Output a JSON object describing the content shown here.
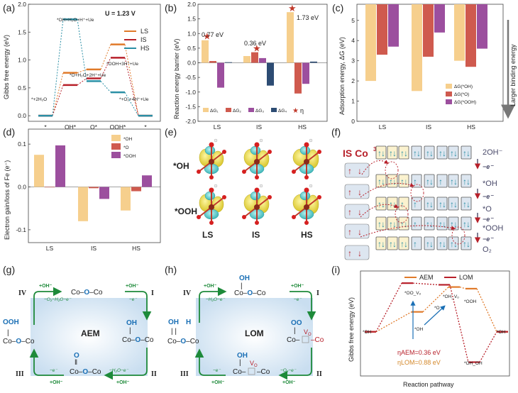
{
  "colors": {
    "ls": "#e07a2a",
    "is": "#b7202a",
    "hs": "#2a8fa5",
    "g1": "#f6cf8d",
    "g2": "#cf5a4e",
    "g3": "#9c4f9e",
    "g4": "#2d4c73",
    "star": "#c0392b",
    "aem": "#e07a2a",
    "lom": "#b7202a",
    "green": "#1e8a3a",
    "blue": "#1a6fb5"
  },
  "panels": {
    "a": {
      "label": "(a)",
      "ylabel": "Gibbs free energy (eV)",
      "annotation": "U = 1.23 V",
      "legend": [
        "LS",
        "IS",
        "HS"
      ],
      "xticks": [
        "*",
        "OH*",
        "O*",
        "OOH*",
        "*"
      ],
      "yticks": [
        "2.0",
        "1.5",
        "1.0",
        "0.5",
        "0.0"
      ],
      "state_labels": [
        "*+2H₂O",
        "*OH+H₂O+H⁺+Ue",
        "*O+H₂O+2H⁺+Ue",
        "*OOH+3H⁺+Ue",
        "*+O₂+4H⁺+Ue"
      ]
    },
    "b": {
      "label": "(b)",
      "ylabel": "Reaction energy barrier (eV)",
      "xticks": [
        "LS",
        "IS",
        "HS"
      ],
      "yticks": [
        "2.0",
        "1.5",
        "1.0",
        "0.5",
        "0.0",
        "-0.5",
        "-1.0",
        "-1.5",
        "-2.0"
      ],
      "values_text": [
        "0.77 eV",
        "0.36 eV",
        "1.73 eV"
      ],
      "legend": [
        "ΔG₁",
        "ΔG₂",
        "ΔG₃",
        "ΔG₄",
        "η"
      ]
    },
    "c": {
      "label": "(c)",
      "ylabel": "Adsorption energy, ΔG (eV)",
      "xticks": [
        "LS",
        "IS",
        "HS"
      ],
      "yticks": [
        "5",
        "4",
        "3",
        "2",
        "1",
        "0"
      ],
      "legend": [
        "ΔG(*OH)",
        "ΔG(*O)",
        "ΔG(*OOH)"
      ],
      "side_text": "Larger binding energy"
    },
    "d": {
      "label": "(d)",
      "ylabel": "Electron gain/loss of Fe (e⁻)",
      "xticks": [
        "LS",
        "IS",
        "HS"
      ],
      "yticks": [
        "0.1",
        "0.0",
        "-0.1"
      ],
      "legend": [
        "*OH",
        "*O",
        "*OOH"
      ]
    },
    "e": {
      "label": "(e)",
      "rows": [
        "*OH",
        "*OOH"
      ],
      "cols": [
        "LS",
        "IS",
        "HS"
      ]
    },
    "f": {
      "label": "(f)",
      "title_is": "IS Co",
      "title_sup": "3+",
      "steps": [
        "2OH⁻",
        "*OH",
        "*O",
        "*OOH",
        "O₂"
      ],
      "arrow_label": "−e⁻"
    },
    "g": {
      "label": "(g)",
      "center": "AEM",
      "roman": [
        "IV",
        "I",
        "II",
        "III"
      ],
      "top_left": "+OH⁻",
      "top_mid": "−O₂−H₂O−e⁻",
      "top_right": "+OH⁻",
      "top_right2": "−e⁻",
      "bot_left": "−e⁻",
      "bot_left2": "+OH⁻",
      "bot_right": "−H₂O−e⁻",
      "bot_right2": "+OH⁻"
    },
    "h": {
      "label": "(h)",
      "center": "LOM",
      "roman": [
        "IV",
        "I",
        "II",
        "III"
      ],
      "top_left": "+OH⁻",
      "top_mid": "−H₂O−e⁻",
      "top_right": "+OH⁻",
      "top_right2": "−e⁻",
      "bot_left": "−e⁻",
      "bot_left2": "+OH⁻",
      "bot_right": "−O₂−e⁻",
      "bot_right2": "+OH⁻",
      "vo": "V",
      "vo_sub": "O"
    },
    "i": {
      "label": "(i)",
      "ylabel": "Gibbs free energy (eV)",
      "xlabel": "Reaction pathway",
      "legend": [
        "AEM",
        "LOM"
      ],
      "states": [
        "*OH",
        "*OO_Vₒ",
        "*OH",
        "*OH_Vₒ",
        "*O",
        "*OOH",
        "*OH_OH",
        "*OH"
      ],
      "eta_aem": "ηAEM=0.36 eV",
      "eta_lom": "ηLOM=0.88 eV"
    }
  },
  "chart_data": [
    {
      "type": "line",
      "title": "(a) Gibbs free energy at U = 1.23 V",
      "categories": [
        "*",
        "OH*",
        "O*",
        "OOH*",
        "*"
      ],
      "series": [
        {
          "name": "LS",
          "values": [
            0,
            0.77,
            0.83,
            1.28,
            0
          ]
        },
        {
          "name": "IS",
          "values": [
            0,
            0.55,
            0.67,
            1.04,
            0
          ]
        },
        {
          "name": "HS",
          "values": [
            0,
            1.73,
            0.62,
            0.42,
            0
          ]
        }
      ],
      "ylim": [
        -0.1,
        2.0
      ]
    },
    {
      "type": "bar",
      "title": "(b) Reaction energy barrier",
      "categories": [
        "LS",
        "IS",
        "HS"
      ],
      "series": [
        {
          "name": "ΔG1",
          "values": [
            0.77,
            0.23,
            1.73
          ]
        },
        {
          "name": "ΔG2",
          "values": [
            0.06,
            0.36,
            -1.05
          ]
        },
        {
          "name": "ΔG3",
          "values": [
            -0.85,
            0.16,
            -0.72
          ]
        },
        {
          "name": "ΔG4",
          "values": [
            0.02,
            -0.78,
            0.04
          ]
        }
      ],
      "eta": [
        0.77,
        0.36,
        1.73
      ],
      "ylim": [
        -2.0,
        2.0
      ]
    },
    {
      "type": "bar",
      "title": "(c) Adsorption energy",
      "categories": [
        "LS",
        "IS",
        "HS"
      ],
      "series": [
        {
          "name": "ΔG(*OH)",
          "values": [
            2.0,
            1.5,
            3.0
          ]
        },
        {
          "name": "ΔG(*O)",
          "values": [
            3.3,
            3.2,
            2.7
          ]
        },
        {
          "name": "ΔG(*OOH)",
          "values": [
            3.7,
            4.4,
            3.6
          ]
        }
      ],
      "ylim": [
        0,
        5.8
      ]
    },
    {
      "type": "bar",
      "title": "(d) Electron gain/loss of Fe",
      "categories": [
        "LS",
        "IS",
        "HS"
      ],
      "series": [
        {
          "name": "*OH",
          "values": [
            0.075,
            -0.08,
            -0.055
          ]
        },
        {
          "name": "*O",
          "values": [
            0,
            -0.003,
            -0.01
          ]
        },
        {
          "name": "*OOH",
          "values": [
            0.097,
            -0.028,
            0.027
          ]
        }
      ],
      "ylim": [
        -0.13,
        0.135
      ]
    },
    {
      "type": "line",
      "title": "(i) AEM vs LOM pathway",
      "series": [
        {
          "name": "AEM",
          "values": [
            0,
            0.36,
            0.81,
            0.78,
            0
          ]
        },
        {
          "name": "LOM",
          "values": [
            0,
            0.88,
            0.85,
            -0.55,
            0
          ]
        }
      ],
      "ylim": [
        -0.8,
        1.1
      ]
    }
  ]
}
